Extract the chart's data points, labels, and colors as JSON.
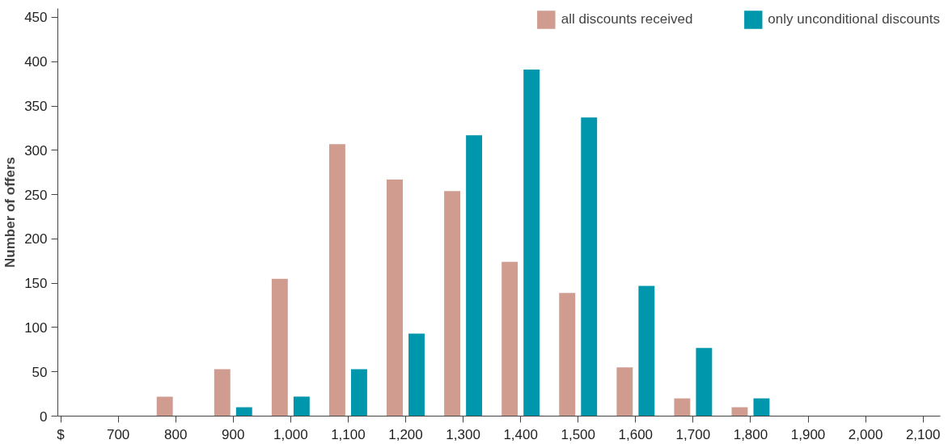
{
  "chart_data": {
    "type": "bar",
    "ylabel": "Number of offers",
    "categories": [
      "$",
      "700",
      "800",
      "900",
      "1,000",
      "1,100",
      "1,200",
      "1,300",
      "1,400",
      "1,500",
      "1,600",
      "1,700",
      "1,800",
      "1,900",
      "2,000",
      "2,100"
    ],
    "series": [
      {
        "name": "all discounts received",
        "color": "#cf9c8f",
        "values": [
          0,
          0,
          22,
          53,
          155,
          307,
          267,
          254,
          174,
          139,
          55,
          20,
          10,
          0,
          0,
          0
        ]
      },
      {
        "name": "only unconditional discounts",
        "color": "#0097ad",
        "values": [
          0,
          0,
          0,
          10,
          22,
          53,
          93,
          317,
          391,
          337,
          147,
          77,
          20,
          0,
          0,
          0
        ]
      }
    ],
    "ylim": [
      0,
      460
    ],
    "yticks": [
      0,
      50,
      100,
      150,
      200,
      250,
      300,
      350,
      400,
      450
    ],
    "grid": false,
    "legend": "top right"
  }
}
